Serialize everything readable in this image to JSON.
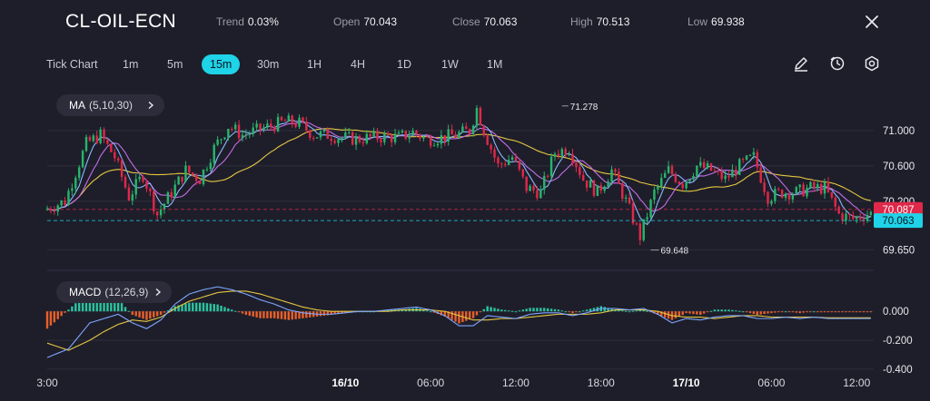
{
  "header": {
    "symbol": "CL-OIL-ECN",
    "trend_label": "Trend",
    "trend_value": "0.03%",
    "open_label": "Open",
    "open_value": "70.043",
    "close_label": "Close",
    "close_value": "70.063",
    "high_label": "High",
    "high_value": "70.513",
    "low_label": "Low",
    "low_value": "69.938"
  },
  "timeframes": [
    "Tick Chart",
    "1m",
    "5m",
    "15m",
    "30m",
    "1H",
    "4H",
    "1D",
    "1W",
    "1M"
  ],
  "active_timeframe": "15m",
  "tools": [
    "pencil-icon",
    "timer-icon",
    "settings-icon",
    "close-icon"
  ],
  "indicators": {
    "ma": {
      "name": "MA",
      "params": "(5,10,30)"
    },
    "macd": {
      "name": "MACD",
      "params": "(12,26,9)"
    }
  },
  "colors": {
    "background": "#1e1e2a",
    "up": "#26b56b",
    "down": "#e0284a",
    "ma5": "#8ab8ff",
    "ma10": "#c46de8",
    "ma30": "#e6c740",
    "macd_line": "#7da6ff",
    "signal_line": "#e6c740",
    "hist_pos": "#2bc4a0",
    "hist_neg": "#e8602a",
    "accent": "#1fd3e8"
  },
  "chart_data": {
    "type": "candlestick",
    "price_axis": {
      "ticks": [
        "71.000",
        "70.600",
        "70.200",
        "69.650"
      ],
      "values": [
        71.0,
        70.6,
        70.2,
        69.65
      ],
      "range": [
        69.5,
        71.45
      ]
    },
    "time_axis": {
      "labels": [
        "3:00",
        "16/10",
        "06:00",
        "12:00",
        "18:00",
        "17/10",
        "06:00",
        "12:00"
      ],
      "hours": [
        3,
        24,
        30,
        36,
        42,
        48,
        54,
        60
      ],
      "range": [
        3,
        61.2
      ]
    },
    "annotations": {
      "max_label": "71.278",
      "max_value": 71.278,
      "max_time": 39.25,
      "min_label": "69.648",
      "min_value": 69.648,
      "min_time": 45.5
    },
    "price_tags": [
      {
        "label": "70.087",
        "value": 70.087,
        "color": "#e0284a"
      },
      {
        "label": "70.063",
        "value": 70.063,
        "color": "#1fd3e8"
      }
    ],
    "series": [
      {
        "name": "Price",
        "anchors": [
          [
            3,
            70.1
          ],
          [
            4.5,
            70.2
          ],
          [
            6,
            70.85
          ],
          [
            7,
            70.95
          ],
          [
            8,
            70.7
          ],
          [
            9,
            70.25
          ],
          [
            10,
            70.5
          ],
          [
            11,
            70.05
          ],
          [
            12,
            70.3
          ],
          [
            13,
            70.55
          ],
          [
            14,
            70.45
          ],
          [
            15,
            70.8
          ],
          [
            16,
            71.05
          ],
          [
            17,
            70.95
          ],
          [
            18,
            71.0
          ],
          [
            19,
            71.05
          ],
          [
            20,
            71.1
          ],
          [
            21,
            71.08
          ],
          [
            22,
            70.95
          ],
          [
            23,
            70.95
          ],
          [
            24,
            70.92
          ],
          [
            25,
            70.9
          ],
          [
            26,
            70.92
          ],
          [
            27,
            70.93
          ],
          [
            28,
            70.92
          ],
          [
            29,
            70.98
          ],
          [
            30,
            70.9
          ],
          [
            31,
            70.92
          ],
          [
            32,
            70.95
          ],
          [
            33,
            71.0
          ],
          [
            33.5,
            71.25
          ],
          [
            34,
            71.0
          ],
          [
            35,
            70.6
          ],
          [
            36,
            70.7
          ],
          [
            37,
            70.35
          ],
          [
            38,
            70.3
          ],
          [
            39,
            70.75
          ],
          [
            40,
            70.8
          ],
          [
            41,
            70.45
          ],
          [
            42,
            70.3
          ],
          [
            43,
            70.55
          ],
          [
            44,
            70.2
          ],
          [
            45,
            69.8
          ],
          [
            46,
            70.3
          ],
          [
            47,
            70.55
          ],
          [
            48,
            70.4
          ],
          [
            49,
            70.6
          ],
          [
            50,
            70.55
          ],
          [
            51,
            70.45
          ],
          [
            52,
            70.6
          ],
          [
            53,
            70.7
          ],
          [
            54,
            70.25
          ],
          [
            55,
            70.3
          ],
          [
            56,
            70.3
          ],
          [
            57,
            70.35
          ],
          [
            58,
            70.35
          ],
          [
            59,
            70.05
          ],
          [
            60,
            70.0
          ],
          [
            61,
            70.06
          ]
        ]
      },
      {
        "name": "MACD",
        "anchors": [
          [
            3,
            -0.32
          ],
          [
            4.5,
            -0.26
          ],
          [
            6,
            -0.08
          ],
          [
            7,
            -0.05
          ],
          [
            8,
            -0.02
          ],
          [
            9,
            -0.08
          ],
          [
            10,
            -0.12
          ],
          [
            11,
            -0.06
          ],
          [
            12,
            0.05
          ],
          [
            13,
            0.12
          ],
          [
            14,
            0.15
          ],
          [
            15,
            0.17
          ],
          [
            16,
            0.15
          ],
          [
            17,
            0.12
          ],
          [
            18,
            0.08
          ],
          [
            19,
            0.05
          ],
          [
            20,
            0.01
          ],
          [
            21,
            -0.01
          ],
          [
            22,
            -0.02
          ],
          [
            23,
            -0.02
          ],
          [
            24,
            -0.01
          ],
          [
            25,
            0.0
          ],
          [
            26,
            0.0
          ],
          [
            27,
            0.01
          ],
          [
            28,
            0.02
          ],
          [
            29,
            0.03
          ],
          [
            30,
            0.01
          ],
          [
            31,
            -0.03
          ],
          [
            32,
            -0.1
          ],
          [
            33,
            -0.1
          ],
          [
            34,
            -0.03
          ],
          [
            35,
            -0.04
          ],
          [
            36,
            -0.05
          ],
          [
            37,
            -0.02
          ],
          [
            38,
            -0.01
          ],
          [
            39,
            -0.01
          ],
          [
            40,
            -0.03
          ],
          [
            41,
            -0.01
          ],
          [
            42,
            0.02
          ],
          [
            43,
            0.02
          ],
          [
            44,
            0.01
          ],
          [
            45,
            0.02
          ],
          [
            46,
            -0.02
          ],
          [
            47,
            -0.08
          ],
          [
            48,
            -0.05
          ],
          [
            49,
            -0.06
          ],
          [
            50,
            -0.04
          ],
          [
            51,
            -0.03
          ],
          [
            52,
            -0.03
          ],
          [
            53,
            -0.05
          ],
          [
            54,
            -0.05
          ],
          [
            55,
            -0.04
          ],
          [
            56,
            -0.05
          ],
          [
            57,
            -0.04
          ],
          [
            58,
            -0.05
          ]
        ]
      },
      {
        "name": "Signal",
        "anchors": [
          [
            3,
            -0.22
          ],
          [
            4.5,
            -0.27
          ],
          [
            6,
            -0.2
          ],
          [
            7,
            -0.14
          ],
          [
            8,
            -0.09
          ],
          [
            9,
            -0.06
          ],
          [
            10,
            -0.07
          ],
          [
            11,
            -0.04
          ],
          [
            12,
            0.02
          ],
          [
            13,
            0.07
          ],
          [
            14,
            0.1
          ],
          [
            15,
            0.13
          ],
          [
            16,
            0.14
          ],
          [
            17,
            0.14
          ],
          [
            18,
            0.12
          ],
          [
            19,
            0.09
          ],
          [
            20,
            0.06
          ],
          [
            21,
            0.03
          ],
          [
            22,
            0.01
          ],
          [
            23,
            0.0
          ],
          [
            24,
            0.0
          ],
          [
            25,
            0.0
          ],
          [
            26,
            0.0
          ],
          [
            27,
            0.0
          ],
          [
            28,
            0.01
          ],
          [
            29,
            0.01
          ],
          [
            30,
            0.01
          ],
          [
            31,
            0.0
          ],
          [
            32,
            -0.03
          ],
          [
            33,
            -0.06
          ],
          [
            34,
            -0.06
          ],
          [
            35,
            -0.05
          ],
          [
            36,
            -0.05
          ],
          [
            37,
            -0.04
          ],
          [
            38,
            -0.03
          ],
          [
            39,
            -0.02
          ],
          [
            40,
            -0.02
          ],
          [
            41,
            -0.02
          ],
          [
            42,
            -0.01
          ],
          [
            43,
            0.01
          ],
          [
            44,
            0.01
          ],
          [
            45,
            0.01
          ],
          [
            46,
            0.0
          ],
          [
            47,
            -0.03
          ],
          [
            48,
            -0.04
          ],
          [
            49,
            -0.04
          ],
          [
            50,
            -0.05
          ],
          [
            51,
            -0.04
          ],
          [
            52,
            -0.03
          ],
          [
            53,
            -0.03
          ],
          [
            54,
            -0.04
          ],
          [
            55,
            -0.04
          ],
          [
            56,
            -0.04
          ],
          [
            57,
            -0.04
          ],
          [
            58,
            -0.045
          ]
        ]
      }
    ],
    "macd_axis": {
      "ticks": [
        "0.000",
        "-0.200",
        "-0.400"
      ],
      "values": [
        0.0,
        -0.2,
        -0.4
      ],
      "range": [
        -0.42,
        0.24
      ]
    }
  }
}
